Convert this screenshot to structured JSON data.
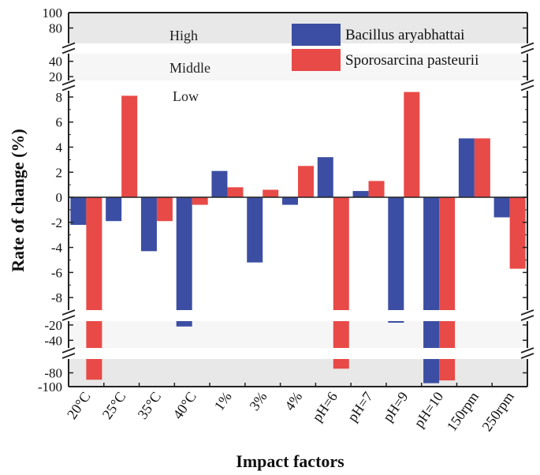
{
  "chart_data": {
    "type": "bar",
    "xlabel": "Impact factors",
    "ylabel": "Rate of change (%)",
    "categories": [
      "20°C",
      "25°C",
      "35°C",
      "40°C",
      "1%",
      "3%",
      "4%",
      "pH=6",
      "pH=7",
      "pH=9",
      "pH=10",
      "150rpm",
      "250rpm"
    ],
    "series": [
      {
        "name": "Bacillus aryabhattai",
        "color": "#3b4ea3",
        "values": [
          -2.2,
          -1.9,
          -4.3,
          -22,
          2.1,
          -5.2,
          -0.6,
          3.2,
          0.5,
          -16,
          -95,
          4.7,
          -1.6
        ]
      },
      {
        "name": "Sporosarcina pasteurii",
        "color": "#e84a47",
        "values": [
          -90,
          8.1,
          -1.9,
          -0.6,
          0.8,
          0.6,
          2.5,
          -74,
          1.3,
          8.4,
          -91,
          4.7,
          -5.7
        ]
      }
    ],
    "y_axis": {
      "broken": true,
      "segments": [
        {
          "range": [
            -100,
            -60
          ],
          "ticks": [
            -100,
            -80
          ]
        },
        {
          "range": [
            -50,
            -15
          ],
          "ticks": [
            -40,
            -20
          ]
        },
        {
          "range": [
            -9,
            8.5
          ],
          "ticks": [
            -8,
            -6,
            -4,
            -2,
            0,
            2,
            4,
            6,
            8
          ]
        },
        {
          "range": [
            15,
            50
          ],
          "ticks": [
            20,
            40
          ]
        },
        {
          "range": [
            60,
            100
          ],
          "ticks": [
            80,
            100
          ]
        }
      ]
    },
    "bands": [
      {
        "label": "High",
        "range": [
          60,
          100
        ],
        "color": "#e8e8e8"
      },
      {
        "label": "Middle",
        "range": [
          15,
          50
        ],
        "color": "#f6f6f6"
      },
      {
        "label": "Low",
        "range": [
          -9,
          8.5
        ],
        "color": "#ffffff"
      },
      {
        "label": "",
        "range": [
          -50,
          -15
        ],
        "color": "#f6f6f6"
      },
      {
        "label": "",
        "range": [
          -100,
          -60
        ],
        "color": "#e8e8e8"
      }
    ],
    "legend_position": "top-right",
    "grid": false
  }
}
